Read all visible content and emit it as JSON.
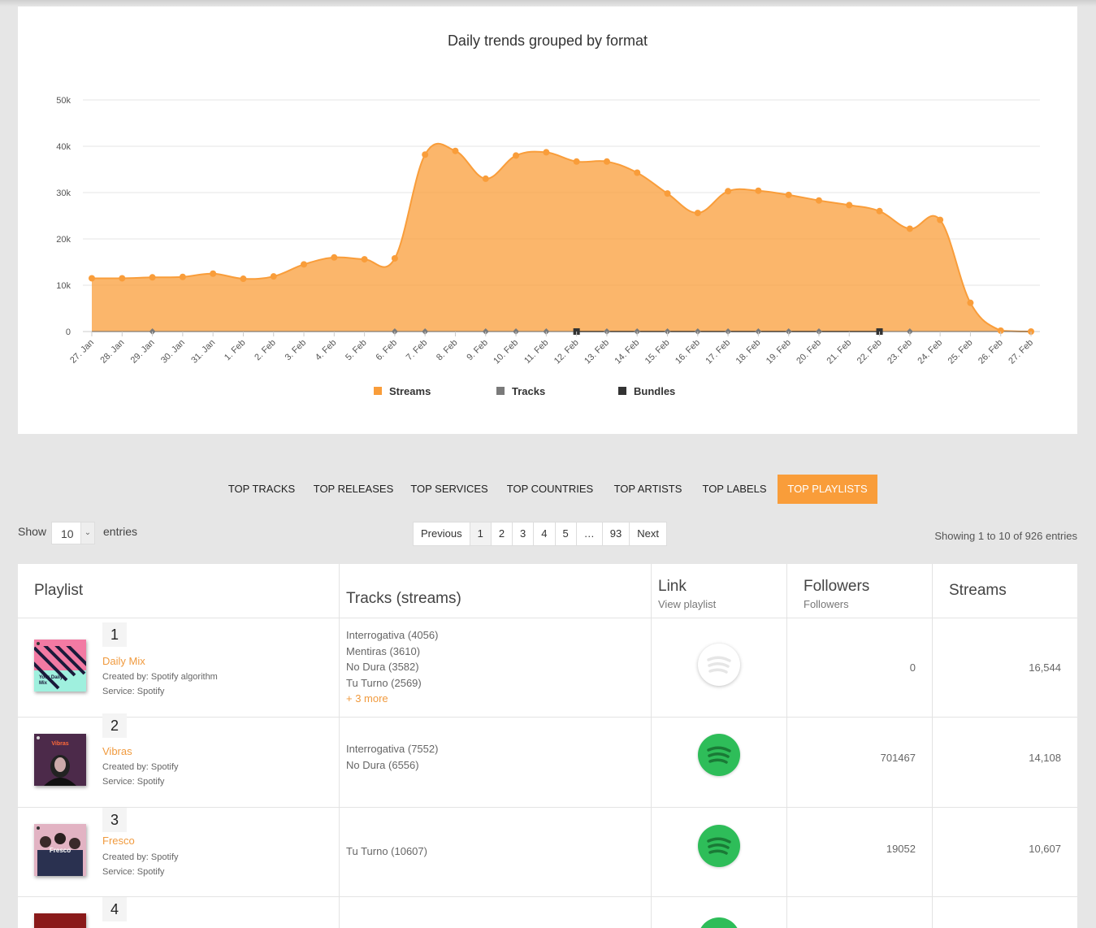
{
  "chart_data": {
    "type": "area",
    "title": "Daily trends grouped by format",
    "x": [
      "27. Jan",
      "28. Jan",
      "29. Jan",
      "30. Jan",
      "31. Jan",
      "1. Feb",
      "2. Feb",
      "3. Feb",
      "4. Feb",
      "5. Feb",
      "6. Feb",
      "7. Feb",
      "8. Feb",
      "9. Feb",
      "10. Feb",
      "11. Feb",
      "12. Feb",
      "13. Feb",
      "14. Feb",
      "15. Feb",
      "16. Feb",
      "17. Feb",
      "18. Feb",
      "19. Feb",
      "20. Feb",
      "21. Feb",
      "22. Feb",
      "23. Feb",
      "24. Feb",
      "25. Feb",
      "26. Feb",
      "27. Feb"
    ],
    "yticks": [
      "0",
      "10k",
      "20k",
      "30k",
      "40k",
      "50k"
    ],
    "ylim": [
      0,
      50000
    ],
    "grid": true,
    "legend_position": "bottom",
    "series": [
      {
        "name": "Streams",
        "color": "#f99d3a",
        "type": "area",
        "values": [
          11500,
          11500,
          11700,
          11800,
          12500,
          11400,
          11900,
          14500,
          16000,
          15600,
          15800,
          38200,
          39000,
          33000,
          38000,
          38700,
          36700,
          36700,
          34300,
          29800,
          25600,
          30300,
          30400,
          29500,
          28300,
          27300,
          26000,
          22200,
          24100,
          6200,
          200,
          0
        ]
      },
      {
        "name": "Tracks",
        "color": "#7a7a7a",
        "type": "line",
        "values": [
          0,
          0,
          50,
          0,
          0,
          0,
          0,
          0,
          0,
          0,
          50,
          50,
          0,
          50,
          50,
          50,
          0,
          50,
          50,
          50,
          50,
          50,
          50,
          50,
          50,
          0,
          0,
          50,
          0,
          0,
          0,
          0
        ]
      },
      {
        "name": "Bundles",
        "color": "#333333",
        "type": "line",
        "values": [
          0,
          0,
          0,
          0,
          0,
          0,
          0,
          0,
          0,
          0,
          0,
          0,
          0,
          0,
          0,
          0,
          50,
          0,
          0,
          0,
          0,
          0,
          0,
          0,
          0,
          0,
          50,
          0,
          0,
          0,
          0,
          0
        ]
      }
    ]
  },
  "tabs": [
    {
      "label": "TOP TRACKS",
      "active": false
    },
    {
      "label": "TOP RELEASES",
      "active": false
    },
    {
      "label": "TOP SERVICES",
      "active": false
    },
    {
      "label": "TOP COUNTRIES",
      "active": false
    },
    {
      "label": "TOP ARTISTS",
      "active": false
    },
    {
      "label": "TOP LABELS",
      "active": false
    },
    {
      "label": "TOP PLAYLISTS",
      "active": true
    }
  ],
  "length": {
    "show": "Show",
    "value": "10",
    "entries": "entries"
  },
  "pagination": {
    "previous": "Previous",
    "pages": [
      "1",
      "2",
      "3",
      "4",
      "5",
      "…",
      "93"
    ],
    "current": "1",
    "next": "Next"
  },
  "info": "Showing 1 to 10 of 926 entries",
  "table": {
    "headers": {
      "playlist": "Playlist",
      "tracks": "Tracks (streams)",
      "link": "Link",
      "link_sub": "View playlist",
      "followers": "Followers",
      "followers_sub": "Followers",
      "streams": "Streams"
    },
    "rows": [
      {
        "rank": "1",
        "name": "Daily Mix",
        "created": "Created by: Spotify algorithm",
        "service": "Service: Spotify",
        "tracks": [
          "Interrogativa (4056)",
          "Mentiras (3610)",
          "No Dura (3582)",
          "Tu Turno (2569)"
        ],
        "more": "+ 3 more",
        "followers": "0",
        "streams": "16,544",
        "link_state": "inactive"
      },
      {
        "rank": "2",
        "name": "Vibras",
        "created": "Created by: Spotify",
        "service": "Service: Spotify",
        "tracks": [
          "Interrogativa (7552)",
          "No Dura (6556)"
        ],
        "more": "",
        "followers": "701467",
        "streams": "14,108",
        "link_state": "active"
      },
      {
        "rank": "3",
        "name": "Fresco",
        "created": "Created by: Spotify",
        "service": "Service: Spotify",
        "tracks": [
          "Tu Turno (10607)"
        ],
        "more": "",
        "followers": "19052",
        "streams": "10,607",
        "link_state": "active"
      },
      {
        "rank": "4",
        "name": "",
        "created": "",
        "service": "",
        "tracks": [],
        "more": "",
        "followers": "",
        "streams": "",
        "link_state": "active"
      }
    ]
  },
  "colors": {
    "accent": "#f99d3a",
    "spotify_green": "#2ebd59"
  },
  "thumb_text": {
    "daily_mix": "Your Daily Mix",
    "vibras": "Vibras",
    "fresco": "Fresco"
  }
}
